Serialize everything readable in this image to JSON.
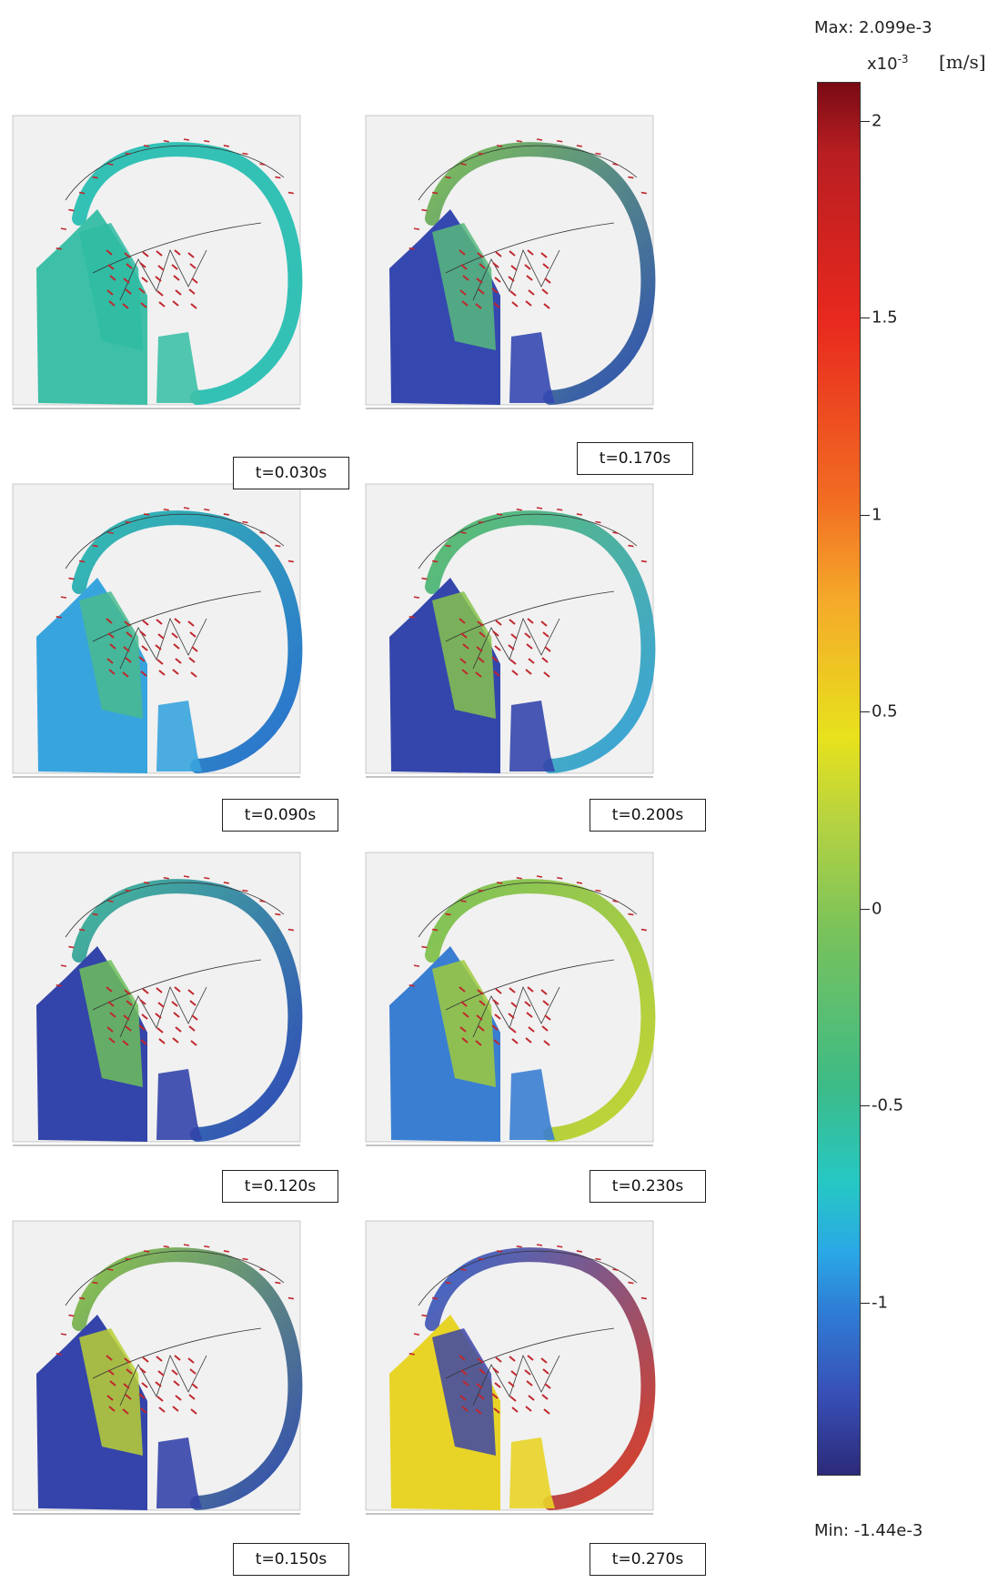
{
  "colorbar": {
    "max_label": "Max: 2.099e-3",
    "min_label": "Min: -1.44e-3",
    "multiplier": "x10",
    "exponent": "-3",
    "unit": "[m/s]",
    "max_value": 0.002099,
    "min_value": -0.00144,
    "ticks": [
      {
        "value": 2,
        "label": "2"
      },
      {
        "value": 1.5,
        "label": "1.5"
      },
      {
        "value": 1,
        "label": "1"
      },
      {
        "value": 0.5,
        "label": "0.5"
      },
      {
        "value": 0,
        "label": "0"
      },
      {
        "value": -0.5,
        "label": "-0.5"
      },
      {
        "value": -1,
        "label": "-1"
      }
    ]
  },
  "snapshots": [
    {
      "label": "t=0.030s",
      "time": 0.03
    },
    {
      "label": "t=0.170s",
      "time": 0.17
    },
    {
      "label": "t=0.090s",
      "time": 0.09
    },
    {
      "label": "t=0.200s",
      "time": 0.2
    },
    {
      "label": "t=0.120s",
      "time": 0.12
    },
    {
      "label": "t=0.230s",
      "time": 0.23
    },
    {
      "label": "t=0.150s",
      "time": 0.15
    },
    {
      "label": "t=0.270s",
      "time": 0.27
    }
  ]
}
